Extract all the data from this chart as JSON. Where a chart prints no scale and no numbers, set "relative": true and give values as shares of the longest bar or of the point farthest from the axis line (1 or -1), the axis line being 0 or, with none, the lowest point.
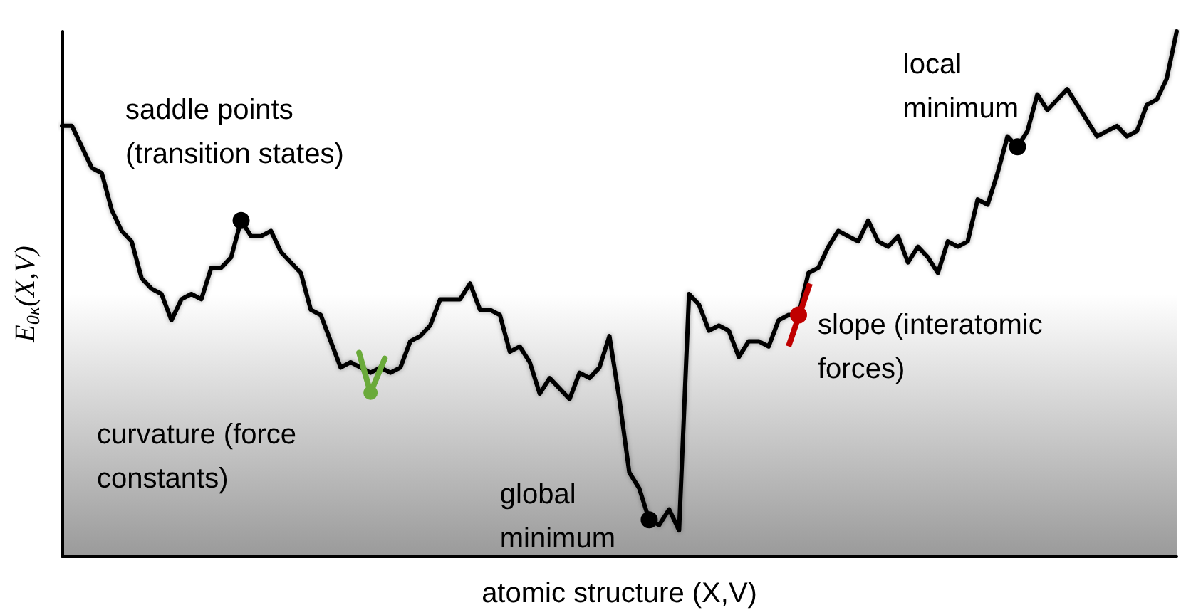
{
  "chart_data": {
    "type": "line",
    "relative": true,
    "xlabel": "atomic structure (X,V)",
    "ylabel": "E$_{0κ}$(X,V)",
    "categories": [
      null,
      null,
      null,
      null,
      null,
      null,
      null,
      null,
      null,
      null,
      null,
      null,
      null,
      null,
      null,
      null,
      null,
      null,
      null,
      null,
      null,
      null,
      null,
      null,
      null,
      null,
      null,
      null,
      null,
      null,
      null,
      null,
      null,
      null,
      null,
      null,
      null,
      null,
      null,
      null,
      null,
      null,
      null,
      null,
      null,
      null,
      null,
      null,
      null,
      null,
      null,
      null,
      null,
      null,
      null,
      null,
      null,
      null,
      null,
      null,
      null,
      null,
      null,
      null,
      null,
      null,
      null,
      null,
      null,
      null,
      null,
      null,
      null,
      null,
      null,
      null,
      null,
      null,
      null,
      null,
      null,
      null,
      null,
      null,
      null,
      null,
      null,
      null,
      null,
      null,
      null,
      null,
      null,
      null,
      null,
      null,
      null,
      null,
      null,
      null,
      null,
      null,
      null,
      null,
      null,
      null,
      null,
      null,
      null,
      null,
      null,
      null,
      null
    ],
    "series": [
      {
        "color": "#000000",
        "values": [
          0.82,
          0.82,
          0.78,
          0.74,
          0.73,
          0.66,
          0.62,
          0.6,
          0.53,
          0.51,
          0.5,
          0.45,
          0.49,
          0.5,
          0.49,
          0.55,
          0.55,
          0.57,
          0.64,
          0.61,
          0.61,
          0.62,
          0.58,
          0.56,
          0.54,
          0.47,
          0.46,
          0.41,
          0.36,
          0.37,
          0.36,
          0.35,
          0.36,
          0.35,
          0.36,
          0.41,
          0.42,
          0.44,
          0.49,
          0.49,
          0.49,
          0.52,
          0.47,
          0.47,
          0.46,
          0.39,
          0.4,
          0.37,
          0.31,
          0.34,
          0.32,
          0.3,
          0.35,
          0.34,
          0.36,
          0.42,
          0.3,
          0.16,
          0.13,
          0.07,
          0.06,
          0.09,
          0.05,
          0.5,
          0.48,
          0.43,
          0.44,
          0.43,
          0.38,
          0.41,
          0.41,
          0.4,
          0.45,
          0.46,
          0.46,
          0.54,
          0.55,
          0.59,
          0.62,
          0.61,
          0.6,
          0.64,
          0.6,
          0.59,
          0.61,
          0.56,
          0.59,
          0.57,
          0.54,
          0.6,
          0.59,
          0.6,
          0.68,
          0.67,
          0.73,
          0.8,
          0.78,
          0.81,
          0.88,
          0.85,
          0.87,
          0.89,
          0.86,
          0.83,
          0.8,
          0.81,
          0.82,
          0.8,
          0.81,
          0.86,
          0.87,
          0.91,
          1
        ]
      }
    ],
    "annotations": [
      "saddle points\n(transition states)",
      "curvature (force\nconstants)",
      "global\nminimum",
      "slope (interatomic\nforces)",
      "local\nminimum"
    ]
  }
}
